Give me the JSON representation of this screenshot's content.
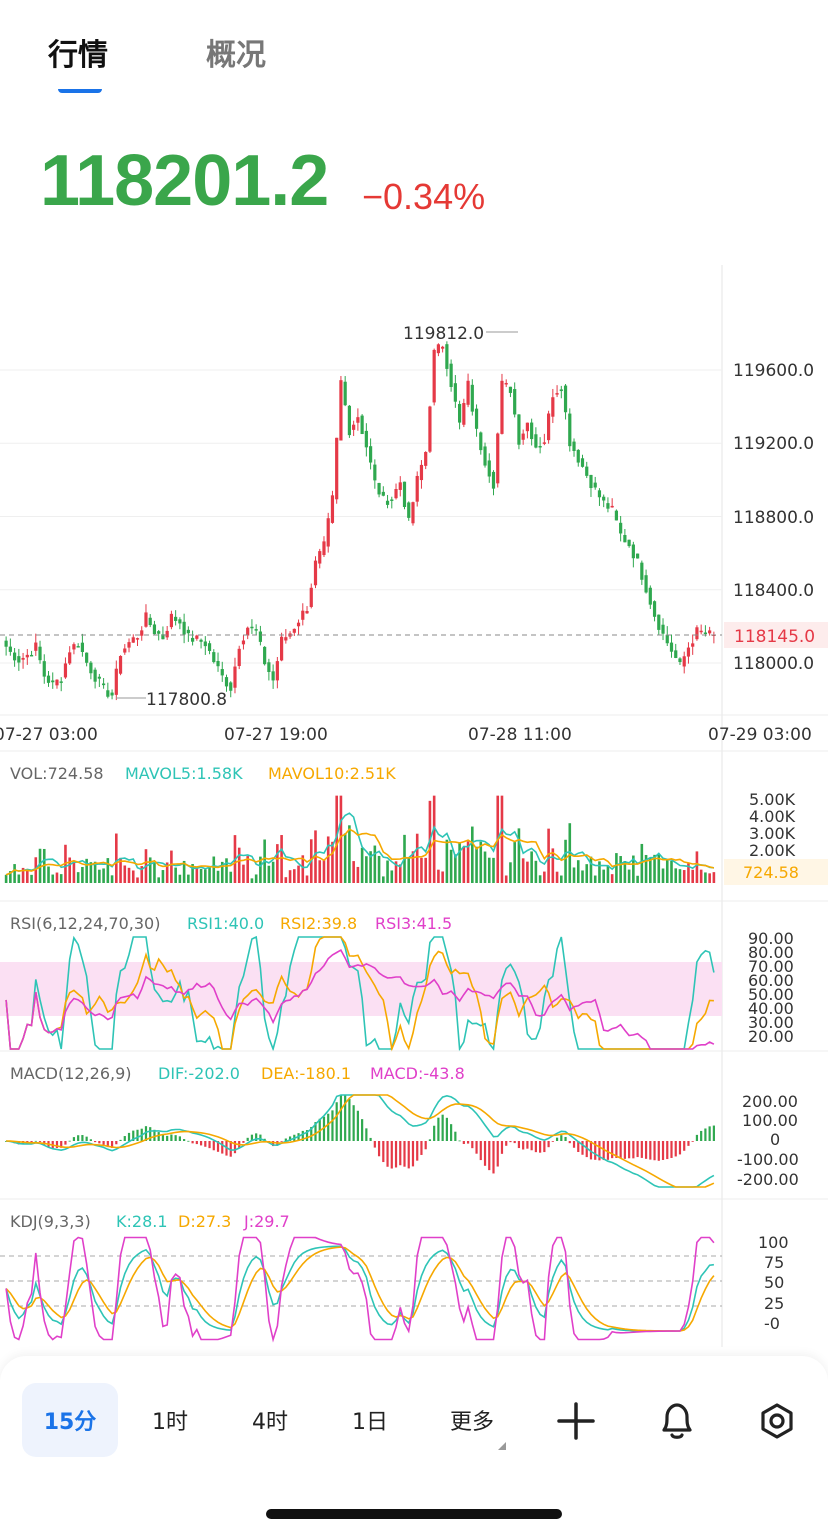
{
  "tabs": {
    "market": "行情",
    "overview": "概况"
  },
  "quote": {
    "price": "118201.2",
    "change_pct": "−0.34%"
  },
  "colors": {
    "up": "#e53947",
    "down": "#2fa84f",
    "accent": "#1a73e8",
    "teal": "#2ec4b6",
    "orange": "#f6a800",
    "pink": "#e040c9"
  },
  "main_chart": {
    "y_labels": [
      "119600.0",
      "119200.0",
      "118800.0",
      "118400.0",
      "118000.0"
    ],
    "last_price_label": "118145.0",
    "high_label": "119812.0",
    "low_label": "117800.8",
    "x_labels": [
      "07-27 03:00",
      "07-27 19:00",
      "07-28 11:00",
      "07-29 03:00"
    ],
    "closes": [
      118122,
      118057,
      118018,
      118044,
      118089,
      117931,
      117878,
      117921,
      118074,
      118111,
      118002,
      117925,
      117851,
      117826,
      118057,
      118111,
      118149,
      118247,
      118174,
      118140,
      118252,
      118225,
      118137,
      118127,
      118108,
      118011,
      117923,
      117865,
      118102,
      118198,
      118172,
      118004,
      117905,
      118123,
      118165,
      118236,
      118306,
      118543,
      118636,
      118894,
      119536,
      119273,
      119351,
      119184,
      118983,
      118886,
      118900,
      118990,
      118763,
      118999,
      119154,
      119692,
      119741,
      119528,
      119301,
      119519,
      119259,
      119106,
      118981,
      119521,
      119496,
      119219,
      119313,
      119185,
      119217,
      119473,
      119515,
      119209,
      119118,
      119027,
      118943,
      118873,
      118832,
      118699,
      118647,
      118548,
      118411,
      118264,
      118154,
      118069,
      117981,
      118089,
      118171,
      118162,
      118145
    ]
  },
  "vol": {
    "header": {
      "vol": "VOL:724.58",
      "ma5": "MAVOL5:1.58K",
      "ma10": "MAVOL10:2.51K"
    },
    "y_labels": [
      "5.00K",
      "4.00K",
      "3.00K",
      "2.00K"
    ],
    "current_label": "724.58"
  },
  "rsi": {
    "header": {
      "name": "RSI(6,12,24,70,30)",
      "rsi1": "RSI1:40.0",
      "rsi2": "RSI2:39.8",
      "rsi3": "RSI3:41.5"
    },
    "y_labels": [
      "90.00",
      "80.00",
      "70.00",
      "60.00",
      "50.00",
      "40.00",
      "30.00",
      "20.00"
    ]
  },
  "macd": {
    "header": {
      "name": "MACD(12,26,9)",
      "dif": "DIF:-202.0",
      "dea": "DEA:-180.1",
      "macd": "MACD:-43.8"
    },
    "y_labels": [
      "200.00",
      "100.00",
      "0",
      "-100.00",
      "-200.00"
    ]
  },
  "kdj": {
    "header": {
      "name": "KDJ(9,3,3)",
      "k": "K:28.1",
      "d": "D:27.3",
      "j": "J:29.7"
    },
    "y_labels": [
      "100",
      "75",
      "50",
      "25",
      "-0"
    ]
  },
  "toolbar": {
    "intervals": [
      "15分",
      "1时",
      "4时",
      "1日",
      "更多"
    ],
    "icons": [
      "plus-icon",
      "bell-icon",
      "gear-icon"
    ]
  }
}
